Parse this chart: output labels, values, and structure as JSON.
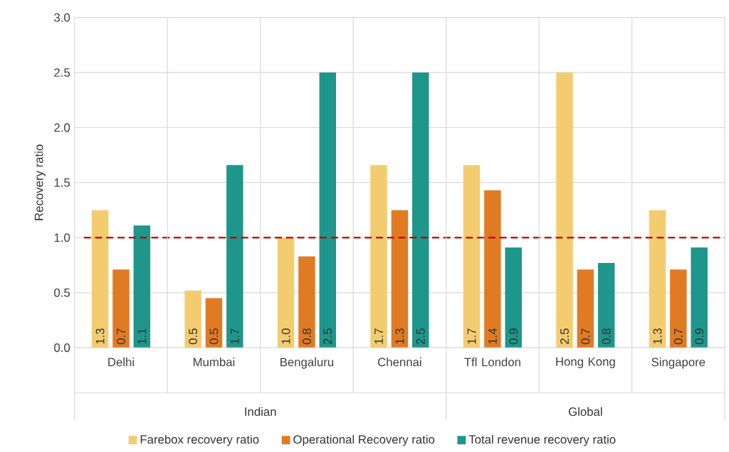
{
  "chart_data": {
    "type": "bar",
    "ylabel": "Recovery ratio",
    "categories": [
      "Delhi",
      "Mumbai",
      "Bengaluru",
      "Chennai",
      "Tfl London",
      "Hong Kong",
      "Singapore"
    ],
    "series": [
      {
        "name": "Farebox recovery ratio",
        "color": "#f4cc70",
        "values": [
          1.25,
          0.52,
          1.0,
          1.66,
          1.66,
          2.5,
          1.25
        ],
        "value_labels": [
          "1.3",
          "0.5",
          "1.0",
          "1.7",
          "1.7",
          "2.5",
          "1.3"
        ]
      },
      {
        "name": "Operational Recovery ratio",
        "color": "#e07b24",
        "values": [
          0.71,
          0.45,
          0.83,
          1.25,
          1.43,
          0.71,
          0.71
        ],
        "value_labels": [
          "0.7",
          "0.5",
          "0.8",
          "1.3",
          "1.4",
          "0.7",
          "0.7"
        ]
      },
      {
        "name": "Total revenue recovery ratio",
        "color": "#1f968b",
        "values": [
          1.11,
          1.66,
          2.5,
          2.5,
          0.91,
          0.77,
          0.91
        ],
        "value_labels": [
          "1.1",
          "1.7",
          "2.5",
          "2.5",
          "0.9",
          "0.8",
          "0.9"
        ]
      }
    ],
    "ylim": [
      0,
      3
    ],
    "yticks": [
      {
        "value": 0,
        "label": "0.0"
      },
      {
        "value": 0.5,
        "label": "0.5"
      },
      {
        "value": 1,
        "label": "1.0"
      },
      {
        "value": 1.5,
        "label": "1.5"
      },
      {
        "value": 2,
        "label": "2.0"
      },
      {
        "value": 2.5,
        "label": "2.5"
      },
      {
        "value": 3,
        "label": "3.0"
      }
    ],
    "ref_lines": [
      {
        "axis": "y",
        "value": 1,
        "color": "#c00000",
        "line_style": "dashed"
      }
    ],
    "annotations": [
      "Indian",
      "Global"
    ],
    "grid": "y",
    "legend": "bottom"
  }
}
